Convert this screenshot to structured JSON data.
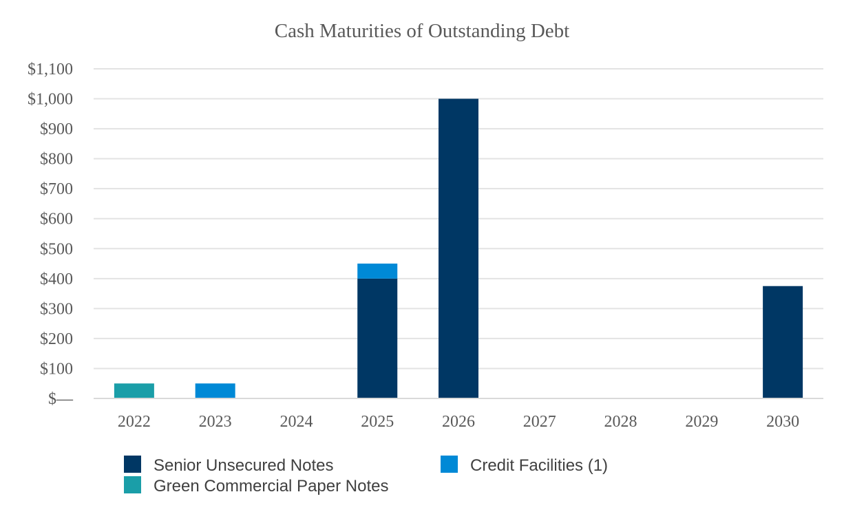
{
  "chart_data": {
    "type": "bar",
    "stacked": true,
    "title": "Cash Maturities of Outstanding Debt",
    "xlabel": "",
    "ylabel": "",
    "categories": [
      "2022",
      "2023",
      "2024",
      "2025",
      "2026",
      "2027",
      "2028",
      "2029",
      "2030"
    ],
    "series": [
      {
        "name": "Senior Unsecured Notes",
        "color": "#003764",
        "values": [
          0,
          0,
          0,
          400,
          1000,
          0,
          0,
          0,
          375
        ]
      },
      {
        "name": "Credit Facilities (1)",
        "color": "#0089d6",
        "values": [
          0,
          50,
          0,
          50,
          0,
          0,
          0,
          0,
          0
        ]
      },
      {
        "name": "Green Commercial Paper Notes",
        "color": "#1a9ea8",
        "values": [
          50,
          0,
          0,
          0,
          0,
          0,
          0,
          0,
          0
        ]
      }
    ],
    "ylim": [
      0,
      1100
    ],
    "yticks": [
      0,
      100,
      200,
      300,
      400,
      500,
      600,
      700,
      800,
      900,
      1000,
      1100
    ],
    "ytick_labels": [
      "$—",
      "$100",
      "$200",
      "$300",
      "$400",
      "$500",
      "$600",
      "$700",
      "$800",
      "$900",
      "$1,000",
      "$1,100"
    ],
    "grid": true,
    "legend_position": "bottom-left",
    "legend_order": [
      "Senior Unsecured Notes",
      "Credit Facilities (1)",
      "Green Commercial Paper Notes"
    ]
  }
}
